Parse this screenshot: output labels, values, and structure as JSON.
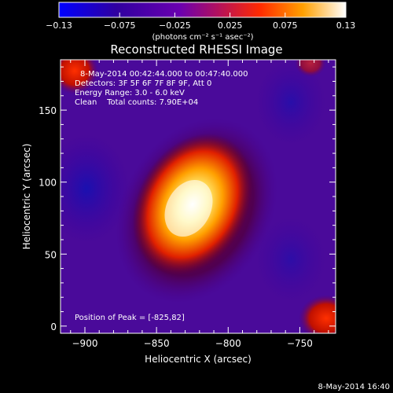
{
  "chart_data": {
    "type": "heatmap",
    "title": "Reconstructed RHESSI Image",
    "colorbar": {
      "ticks": [
        "-0.13",
        "-0.075",
        "-0.025",
        "0.025",
        "0.075",
        "0.13"
      ],
      "range": [
        -0.13,
        0.13
      ],
      "unit_label": "(photons cm⁻² s⁻¹ asec⁻²)",
      "colormap": [
        "#0000ff",
        "#2a0090",
        "#6a00b0",
        "#b01060",
        "#ff3000",
        "#ffa000",
        "#ffffff"
      ]
    },
    "annotations": [
      "8-May-2014 00:42:44.000 to 00:47:40.000",
      "Detectors: 3F 5F 6F 7F 8F 9F, Att 0",
      "Energy Range: 3.0 - 6.0 keV",
      "Clean    Total counts: 7.90E+04"
    ],
    "peak_label": "Position of Peak = [-825,82]",
    "peak": {
      "x": -825,
      "y": 82
    },
    "xlabel": "Heliocentric X (arcsec)",
    "ylabel": "Heliocentric Y (arcsec)",
    "xlim": [
      -917,
      -725
    ],
    "ylim": [
      -5,
      185
    ],
    "x_ticks": [
      -900,
      -850,
      -800,
      -750
    ],
    "y_ticks": [
      0,
      50,
      100,
      150
    ],
    "x_tick_labels": [
      "−900",
      "−850",
      "−800",
      "−750"
    ],
    "y_tick_labels": [
      "0",
      "50",
      "100",
      "150"
    ],
    "grid": false
  },
  "timestamp": "8-May-2014 16:40"
}
